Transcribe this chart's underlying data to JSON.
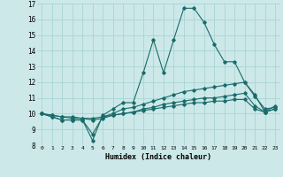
{
  "title": "",
  "xlabel": "Humidex (Indice chaleur)",
  "ylabel": "",
  "bg_color": "#cce8e8",
  "grid_color": "#aad4d4",
  "line_color": "#1a6b6b",
  "xlim": [
    -0.5,
    23.5
  ],
  "ylim": [
    8,
    17
  ],
  "yticks": [
    8,
    9,
    10,
    11,
    12,
    13,
    14,
    15,
    16,
    17
  ],
  "xticks": [
    0,
    1,
    2,
    3,
    4,
    5,
    6,
    7,
    8,
    9,
    10,
    11,
    12,
    13,
    14,
    15,
    16,
    17,
    18,
    19,
    20,
    21,
    22,
    23
  ],
  "series": [
    {
      "x": [
        0,
        1,
        2,
        3,
        4,
        5,
        6,
        7,
        8,
        9,
        10,
        11,
        12,
        13,
        14,
        15,
        16,
        17,
        18,
        19,
        20,
        21,
        22,
        23
      ],
      "y": [
        10.0,
        9.8,
        9.6,
        9.6,
        9.6,
        8.3,
        9.9,
        10.3,
        10.7,
        10.7,
        12.6,
        14.7,
        12.6,
        14.7,
        16.7,
        16.7,
        15.8,
        14.4,
        13.3,
        13.3,
        12.0,
        11.2,
        10.1,
        10.5
      ]
    },
    {
      "x": [
        0,
        1,
        2,
        3,
        4,
        5,
        6,
        7,
        8,
        9,
        10,
        11,
        12,
        13,
        14,
        15,
        16,
        17,
        18,
        19,
        20,
        21,
        22,
        23
      ],
      "y": [
        10.0,
        9.8,
        9.6,
        9.6,
        9.6,
        8.7,
        9.8,
        10.0,
        10.3,
        10.4,
        10.6,
        10.8,
        11.0,
        11.2,
        11.4,
        11.5,
        11.6,
        11.7,
        11.8,
        11.9,
        12.0,
        11.1,
        10.3,
        10.4
      ]
    },
    {
      "x": [
        0,
        1,
        2,
        3,
        4,
        5,
        6,
        7,
        8,
        9,
        10,
        11,
        12,
        13,
        14,
        15,
        16,
        17,
        18,
        19,
        20,
        21,
        22,
        23
      ],
      "y": [
        10.0,
        9.9,
        9.8,
        9.7,
        9.7,
        9.6,
        9.7,
        9.9,
        10.0,
        10.1,
        10.3,
        10.4,
        10.6,
        10.7,
        10.8,
        10.9,
        11.0,
        11.0,
        11.1,
        11.2,
        11.3,
        10.5,
        10.1,
        10.3
      ]
    },
    {
      "x": [
        0,
        1,
        2,
        3,
        4,
        5,
        6,
        7,
        8,
        9,
        10,
        11,
        12,
        13,
        14,
        15,
        16,
        17,
        18,
        19,
        20,
        21,
        22,
        23
      ],
      "y": [
        10.0,
        9.9,
        9.8,
        9.8,
        9.7,
        9.7,
        9.8,
        9.9,
        10.0,
        10.1,
        10.2,
        10.3,
        10.4,
        10.5,
        10.6,
        10.7,
        10.7,
        10.8,
        10.8,
        10.9,
        10.9,
        10.3,
        10.1,
        10.3
      ]
    }
  ]
}
